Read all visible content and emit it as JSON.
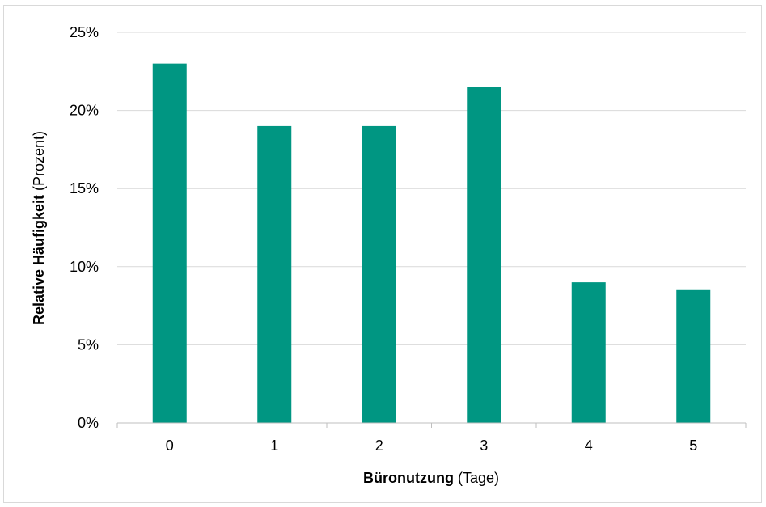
{
  "chart_data": {
    "type": "bar",
    "categories": [
      "0",
      "1",
      "2",
      "3",
      "4",
      "5"
    ],
    "values": [
      23,
      19,
      19,
      21.5,
      9,
      8.5
    ],
    "value_unit": "%",
    "ylim": [
      0,
      25
    ],
    "yticks": [
      0,
      5,
      10,
      15,
      20,
      25
    ],
    "ytick_labels": [
      "0%",
      "5%",
      "10%",
      "15%",
      "20%",
      "25%"
    ],
    "xlabel": {
      "bold": "Büronutzung",
      "normal": " (Tage)"
    },
    "ylabel": {
      "bold": "Relative Häufigkeit",
      "normal": " (Prozent)"
    },
    "grid": true,
    "legend": "none",
    "colors": {
      "bar": "#009682",
      "grid": "#d9d9d9",
      "axis": "#bfbfbf"
    }
  }
}
